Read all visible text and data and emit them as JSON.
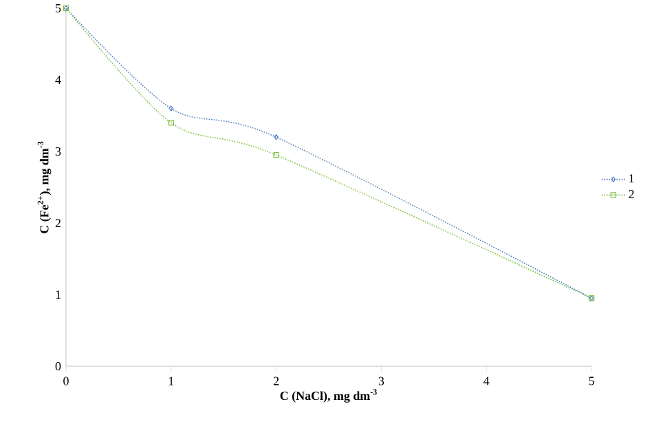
{
  "chart_data": {
    "type": "line",
    "xlabel": "C (NaCl), mg dm$^{-3}$",
    "ylabel": "C (Fe$^{2+}$), mg dm$^{-3}$",
    "x": [
      0,
      1,
      2,
      5
    ],
    "series": [
      {
        "name": "1",
        "color": "#4f81bd",
        "values": [
          5,
          3.6,
          3.2,
          0.95
        ],
        "marker": "diamond"
      },
      {
        "name": "2",
        "color": "#7cc040",
        "values": [
          5,
          3.4,
          2.95,
          0.95
        ],
        "marker": "square"
      }
    ],
    "xlim": [
      0,
      5
    ],
    "xticks": [
      0,
      1,
      2,
      3,
      4,
      5
    ],
    "ylim": [
      0,
      5
    ],
    "yticks": [
      0,
      1,
      2,
      3,
      4,
      5
    ],
    "line_style": "dotted",
    "legend": "right",
    "grid": false
  }
}
